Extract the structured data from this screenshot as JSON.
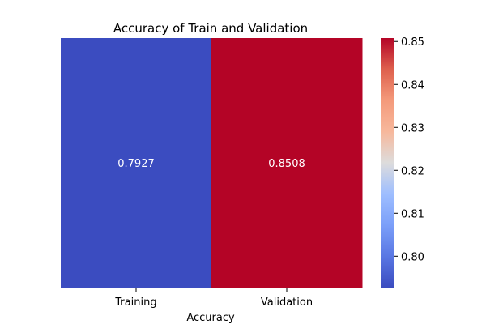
{
  "chart_data": {
    "type": "heatmap",
    "title": "Accuracy of Train and Validation",
    "xlabel": "Accuracy",
    "ylabel": "",
    "x_categories": [
      "Training",
      "Validation"
    ],
    "y_categories": [
      ""
    ],
    "values": [
      [
        0.7927,
        0.8508
      ]
    ],
    "value_labels": [
      "0.7927",
      "0.8508"
    ],
    "colormap": "coolwarm",
    "colorbar": {
      "range": [
        0.7927,
        0.8508
      ],
      "ticks": [
        0.8,
        0.81,
        0.82,
        0.83,
        0.84,
        0.85
      ],
      "tick_labels": [
        "0.80",
        "0.81",
        "0.82",
        "0.83",
        "0.84",
        "0.85"
      ]
    },
    "colors": {
      "low": "#3b4cc0",
      "high": "#b40426",
      "annotation": "#ffffff"
    },
    "grid": false
  }
}
